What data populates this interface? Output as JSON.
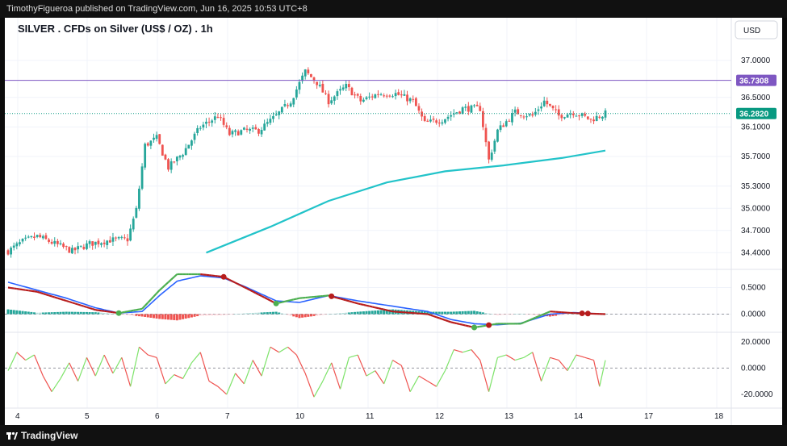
{
  "header": {
    "publisher_line": "TimothyFigueroa published on TradingView.com, Jun 16, 2025 10:53 UTC+8"
  },
  "footer": {
    "brand": "TradingView"
  },
  "chart": {
    "title": "SILVER . CFDs on Silver (US$ / OZ) . 1h",
    "currency_button": "USD",
    "purple_line_label": "36.7308",
    "last_price_label": "36.2820"
  },
  "colors": {
    "up": "#26a69a",
    "down": "#ef5350",
    "ma_line": "#22c3c9",
    "purple_line": "#7e57c2",
    "macd_line": "#2962ff",
    "signal_dark": "#b71c1c",
    "signal_green": "#4caf50",
    "rsi_up": "#7ee36a",
    "rsi_down": "#ef5350"
  },
  "chart_data": [
    {
      "type": "candlestick",
      "x_ticks": [
        "4",
        "5",
        "6",
        "7",
        "10",
        "11",
        "12",
        "13",
        "14",
        "17",
        "18"
      ],
      "y_ticks": [
        "37.0000",
        "36.5000",
        "36.1000",
        "35.7000",
        "35.3000",
        "35.0000",
        "34.7000",
        "34.4000"
      ],
      "ylim": [
        34.25,
        37.25
      ],
      "close_path": [
        {
          "i": 0,
          "v": 34.42
        },
        {
          "i": 5,
          "v": 34.55
        },
        {
          "i": 10,
          "v": 34.62
        },
        {
          "i": 16,
          "v": 34.52
        },
        {
          "i": 22,
          "v": 34.42
        },
        {
          "i": 28,
          "v": 34.52
        },
        {
          "i": 35,
          "v": 34.57
        },
        {
          "i": 41,
          "v": 34.58
        },
        {
          "i": 44,
          "v": 34.98
        },
        {
          "i": 47,
          "v": 35.85
        },
        {
          "i": 51,
          "v": 35.95
        },
        {
          "i": 55,
          "v": 35.55
        },
        {
          "i": 60,
          "v": 35.75
        },
        {
          "i": 66,
          "v": 36.1
        },
        {
          "i": 72,
          "v": 36.25
        },
        {
          "i": 76,
          "v": 36.0
        },
        {
          "i": 81,
          "v": 36.05
        },
        {
          "i": 86,
          "v": 36.05
        },
        {
          "i": 92,
          "v": 36.25
        },
        {
          "i": 97,
          "v": 36.45
        },
        {
          "i": 102,
          "v": 36.85
        },
        {
          "i": 106,
          "v": 36.7
        },
        {
          "i": 110,
          "v": 36.45
        },
        {
          "i": 116,
          "v": 36.65
        },
        {
          "i": 121,
          "v": 36.45
        },
        {
          "i": 127,
          "v": 36.55
        },
        {
          "i": 133,
          "v": 36.55
        },
        {
          "i": 139,
          "v": 36.45
        },
        {
          "i": 143,
          "v": 36.15
        },
        {
          "i": 149,
          "v": 36.2
        },
        {
          "i": 156,
          "v": 36.35
        },
        {
          "i": 162,
          "v": 36.35
        },
        {
          "i": 165,
          "v": 35.65
        },
        {
          "i": 168,
          "v": 36.05
        },
        {
          "i": 174,
          "v": 36.3
        },
        {
          "i": 180,
          "v": 36.25
        },
        {
          "i": 184,
          "v": 36.45
        },
        {
          "i": 189,
          "v": 36.25
        },
        {
          "i": 194,
          "v": 36.3
        },
        {
          "i": 200,
          "v": 36.2
        },
        {
          "i": 205,
          "v": 36.28
        }
      ],
      "count": 206,
      "moving_average": [
        {
          "i": 68,
          "v": 34.4
        },
        {
          "i": 90,
          "v": 34.75
        },
        {
          "i": 110,
          "v": 35.1
        },
        {
          "i": 130,
          "v": 35.35
        },
        {
          "i": 150,
          "v": 35.5
        },
        {
          "i": 170,
          "v": 35.58
        },
        {
          "i": 190,
          "v": 35.68
        },
        {
          "i": 205,
          "v": 35.78
        }
      ],
      "horizontal_line": 36.7308,
      "last_price": 36.282
    },
    {
      "type": "macd",
      "y_ticks": [
        "0.5000",
        "0.0000"
      ],
      "ylim": [
        -0.28,
        0.75
      ],
      "macd": [
        {
          "i": 0,
          "v": 0.6
        },
        {
          "i": 10,
          "v": 0.45
        },
        {
          "i": 20,
          "v": 0.3
        },
        {
          "i": 30,
          "v": 0.12
        },
        {
          "i": 38,
          "v": 0.02
        },
        {
          "i": 46,
          "v": 0.05
        },
        {
          "i": 52,
          "v": 0.35
        },
        {
          "i": 58,
          "v": 0.62
        },
        {
          "i": 66,
          "v": 0.72
        },
        {
          "i": 74,
          "v": 0.68
        },
        {
          "i": 82,
          "v": 0.5
        },
        {
          "i": 92,
          "v": 0.25
        },
        {
          "i": 100,
          "v": 0.22
        },
        {
          "i": 110,
          "v": 0.35
        },
        {
          "i": 120,
          "v": 0.25
        },
        {
          "i": 132,
          "v": 0.15
        },
        {
          "i": 144,
          "v": 0.05
        },
        {
          "i": 152,
          "v": -0.1
        },
        {
          "i": 160,
          "v": -0.18
        },
        {
          "i": 168,
          "v": -0.2
        },
        {
          "i": 176,
          "v": -0.17
        },
        {
          "i": 186,
          "v": 0.0
        },
        {
          "i": 194,
          "v": 0.03
        },
        {
          "i": 205,
          "v": 0.0
        }
      ],
      "signal": [
        {
          "i": 0,
          "v": 0.5
        },
        {
          "i": 10,
          "v": 0.42
        },
        {
          "i": 20,
          "v": 0.25
        },
        {
          "i": 30,
          "v": 0.08
        },
        {
          "i": 38,
          "v": 0.02
        },
        {
          "i": 46,
          "v": 0.1
        },
        {
          "i": 52,
          "v": 0.45
        },
        {
          "i": 58,
          "v": 0.75
        },
        {
          "i": 66,
          "v": 0.75
        },
        {
          "i": 74,
          "v": 0.7
        },
        {
          "i": 82,
          "v": 0.48
        },
        {
          "i": 92,
          "v": 0.2
        },
        {
          "i": 100,
          "v": 0.3
        },
        {
          "i": 110,
          "v": 0.35
        },
        {
          "i": 120,
          "v": 0.2
        },
        {
          "i": 132,
          "v": 0.05
        },
        {
          "i": 144,
          "v": 0.0
        },
        {
          "i": 152,
          "v": -0.15
        },
        {
          "i": 160,
          "v": -0.25
        },
        {
          "i": 168,
          "v": -0.18
        },
        {
          "i": 176,
          "v": -0.18
        },
        {
          "i": 186,
          "v": 0.05
        },
        {
          "i": 194,
          "v": 0.02
        },
        {
          "i": 205,
          "v": 0.0
        }
      ],
      "cross_up": [
        38,
        92,
        160
      ],
      "cross_down": [
        74,
        111,
        165,
        197,
        199
      ]
    },
    {
      "type": "oscillator",
      "y_ticks": [
        "20.0000",
        "0.0000",
        "-20.0000"
      ],
      "ylim": [
        -28,
        26
      ],
      "values": [
        {
          "i": 0,
          "v": -2
        },
        {
          "i": 3,
          "v": 12
        },
        {
          "i": 6,
          "v": 6
        },
        {
          "i": 9,
          "v": 10
        },
        {
          "i": 12,
          "v": -6
        },
        {
          "i": 15,
          "v": -18
        },
        {
          "i": 18,
          "v": -8
        },
        {
          "i": 21,
          "v": 4
        },
        {
          "i": 24,
          "v": -10
        },
        {
          "i": 27,
          "v": 8
        },
        {
          "i": 30,
          "v": -6
        },
        {
          "i": 33,
          "v": 10
        },
        {
          "i": 36,
          "v": -4
        },
        {
          "i": 39,
          "v": 8
        },
        {
          "i": 42,
          "v": -14
        },
        {
          "i": 45,
          "v": 16
        },
        {
          "i": 48,
          "v": 10
        },
        {
          "i": 51,
          "v": 8
        },
        {
          "i": 54,
          "v": -12
        },
        {
          "i": 57,
          "v": -5
        },
        {
          "i": 60,
          "v": -8
        },
        {
          "i": 63,
          "v": 4
        },
        {
          "i": 66,
          "v": 12
        },
        {
          "i": 69,
          "v": -10
        },
        {
          "i": 72,
          "v": -14
        },
        {
          "i": 75,
          "v": -20
        },
        {
          "i": 78,
          "v": -4
        },
        {
          "i": 81,
          "v": -12
        },
        {
          "i": 84,
          "v": 6
        },
        {
          "i": 87,
          "v": -6
        },
        {
          "i": 90,
          "v": 16
        },
        {
          "i": 93,
          "v": 12
        },
        {
          "i": 96,
          "v": 16
        },
        {
          "i": 99,
          "v": 10
        },
        {
          "i": 102,
          "v": -4
        },
        {
          "i": 105,
          "v": -22
        },
        {
          "i": 108,
          "v": -10
        },
        {
          "i": 111,
          "v": 4
        },
        {
          "i": 114,
          "v": -16
        },
        {
          "i": 117,
          "v": 8
        },
        {
          "i": 120,
          "v": 10
        },
        {
          "i": 123,
          "v": -6
        },
        {
          "i": 126,
          "v": -2
        },
        {
          "i": 129,
          "v": -12
        },
        {
          "i": 132,
          "v": 6
        },
        {
          "i": 135,
          "v": 2
        },
        {
          "i": 138,
          "v": -18
        },
        {
          "i": 141,
          "v": -6
        },
        {
          "i": 144,
          "v": -10
        },
        {
          "i": 147,
          "v": -14
        },
        {
          "i": 150,
          "v": -2
        },
        {
          "i": 153,
          "v": 14
        },
        {
          "i": 156,
          "v": 12
        },
        {
          "i": 159,
          "v": 14
        },
        {
          "i": 162,
          "v": 6
        },
        {
          "i": 165,
          "v": -18
        },
        {
          "i": 168,
          "v": 8
        },
        {
          "i": 171,
          "v": 10
        },
        {
          "i": 174,
          "v": 6
        },
        {
          "i": 177,
          "v": 8
        },
        {
          "i": 180,
          "v": 12
        },
        {
          "i": 183,
          "v": -10
        },
        {
          "i": 186,
          "v": 8
        },
        {
          "i": 189,
          "v": 6
        },
        {
          "i": 192,
          "v": -2
        },
        {
          "i": 195,
          "v": 10
        },
        {
          "i": 198,
          "v": 8
        },
        {
          "i": 201,
          "v": 6
        },
        {
          "i": 203,
          "v": -14
        },
        {
          "i": 205,
          "v": 6
        }
      ]
    }
  ]
}
